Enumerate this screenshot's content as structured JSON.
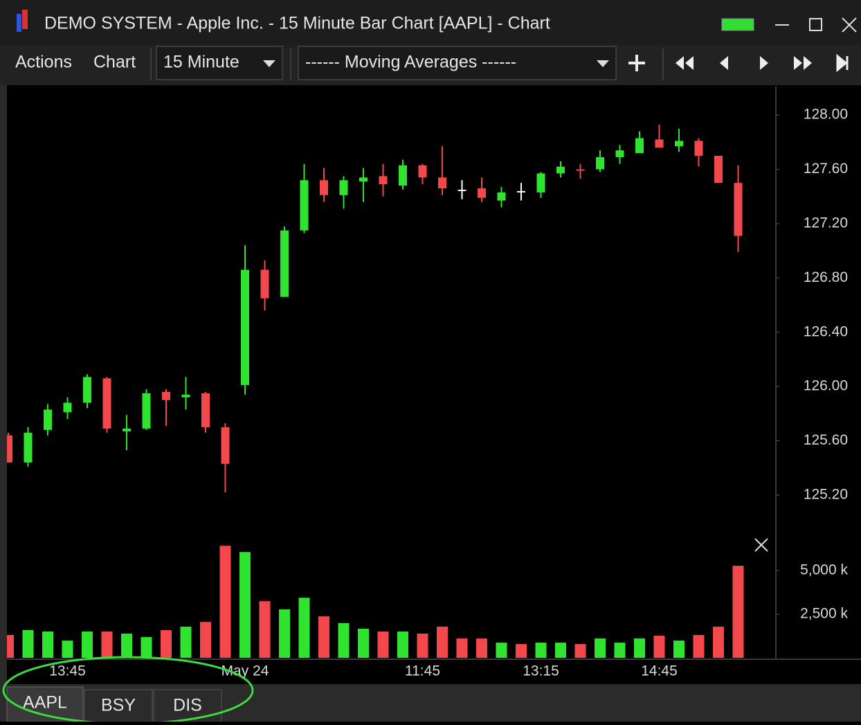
{
  "window": {
    "title": "DEMO SYSTEM - Apple Inc. - 15 Minute Bar Chart [AAPL] - Chart"
  },
  "toolbar": {
    "menus": [
      "Actions",
      "Chart"
    ],
    "interval": "15 Minute",
    "study": "------  Moving Averages  ------"
  },
  "tabs": [
    "AAPL",
    "BSY",
    "DIS"
  ],
  "chart_data": [
    {
      "type": "candlestick",
      "categories": [
        null,
        null,
        null,
        "13:45",
        null,
        null,
        null,
        null,
        null,
        null,
        null,
        null,
        "May 24",
        null,
        null,
        null,
        null,
        null,
        null,
        null,
        null,
        "11:45",
        null,
        null,
        null,
        null,
        null,
        "13:15",
        null,
        null,
        null,
        null,
        null,
        "14:45",
        null,
        null,
        null,
        null
      ],
      "open": [
        125.64,
        125.44,
        125.68,
        125.81,
        125.88,
        126.06,
        125.67,
        125.69,
        125.96,
        125.92,
        125.95,
        125.7,
        126.01,
        126.86,
        126.66,
        127.15,
        127.52,
        127.41,
        127.51,
        127.55,
        127.48,
        127.63,
        127.54,
        127.45,
        127.46,
        127.37,
        127.44,
        127.43,
        127.57,
        127.6,
        127.6,
        127.69,
        127.72,
        127.82,
        127.77,
        127.81,
        127.7,
        127.5
      ],
      "high": [
        125.66,
        125.7,
        125.87,
        125.92,
        126.09,
        126.07,
        125.79,
        125.98,
        125.98,
        126.07,
        125.96,
        125.73,
        127.04,
        126.93,
        127.18,
        127.64,
        127.61,
        127.55,
        127.61,
        127.64,
        127.67,
        127.64,
        127.77,
        127.52,
        127.54,
        127.47,
        127.5,
        127.58,
        127.66,
        127.64,
        127.74,
        127.78,
        127.88,
        127.93,
        127.9,
        127.83,
        127.7,
        127.63
      ],
      "low": [
        125.44,
        125.41,
        125.64,
        125.76,
        125.84,
        125.66,
        125.53,
        125.68,
        125.71,
        125.83,
        125.66,
        125.22,
        125.94,
        126.56,
        126.66,
        127.13,
        127.36,
        127.31,
        127.36,
        127.4,
        127.45,
        127.49,
        127.41,
        127.38,
        127.36,
        127.32,
        127.37,
        127.39,
        127.54,
        127.53,
        127.58,
        127.64,
        127.72,
        127.76,
        127.73,
        127.62,
        127.5,
        126.99
      ],
      "close": [
        125.44,
        125.66,
        125.83,
        125.88,
        126.07,
        125.69,
        125.69,
        125.95,
        125.9,
        125.94,
        125.7,
        125.43,
        126.86,
        126.65,
        127.15,
        127.52,
        127.41,
        127.52,
        127.54,
        127.49,
        127.63,
        127.54,
        127.46,
        127.45,
        127.39,
        127.43,
        127.44,
        127.57,
        127.62,
        127.59,
        127.69,
        127.74,
        127.83,
        127.76,
        127.81,
        127.7,
        127.5,
        127.11
      ],
      "up_color": "#2fe32f",
      "down_color": "#f2484b",
      "doji_color": "#ffffff",
      "ylim": [
        124.97,
        128.21
      ],
      "yticks": [
        {
          "value": 128,
          "label": "128.00"
        },
        {
          "value": 127.6,
          "label": "127.60"
        },
        {
          "value": 127.2,
          "label": "127.20"
        },
        {
          "value": 126.8,
          "label": "126.80"
        },
        {
          "value": 126.4,
          "label": "126.40"
        },
        {
          "value": 126,
          "label": "126.00"
        },
        {
          "value": 125.6,
          "label": "125.60"
        },
        {
          "value": 125.2,
          "label": "125.20"
        }
      ]
    },
    {
      "type": "bar",
      "values": [
        1310,
        1590,
        1510,
        990,
        1510,
        1510,
        1390,
        1190,
        1590,
        1790,
        2060,
        6430,
        6070,
        3250,
        2780,
        3450,
        2380,
        1990,
        1670,
        1510,
        1510,
        1390,
        1790,
        1110,
        1110,
        870,
        790,
        870,
        870,
        790,
        1110,
        870,
        1110,
        1270,
        990,
        1310,
        1790,
        5280
      ],
      "ylim": [
        0,
        7150
      ],
      "yticks": [
        {
          "value": 2500,
          "label": "2,500 k"
        },
        {
          "value": 5000,
          "label": "5,000 k"
        }
      ]
    }
  ]
}
